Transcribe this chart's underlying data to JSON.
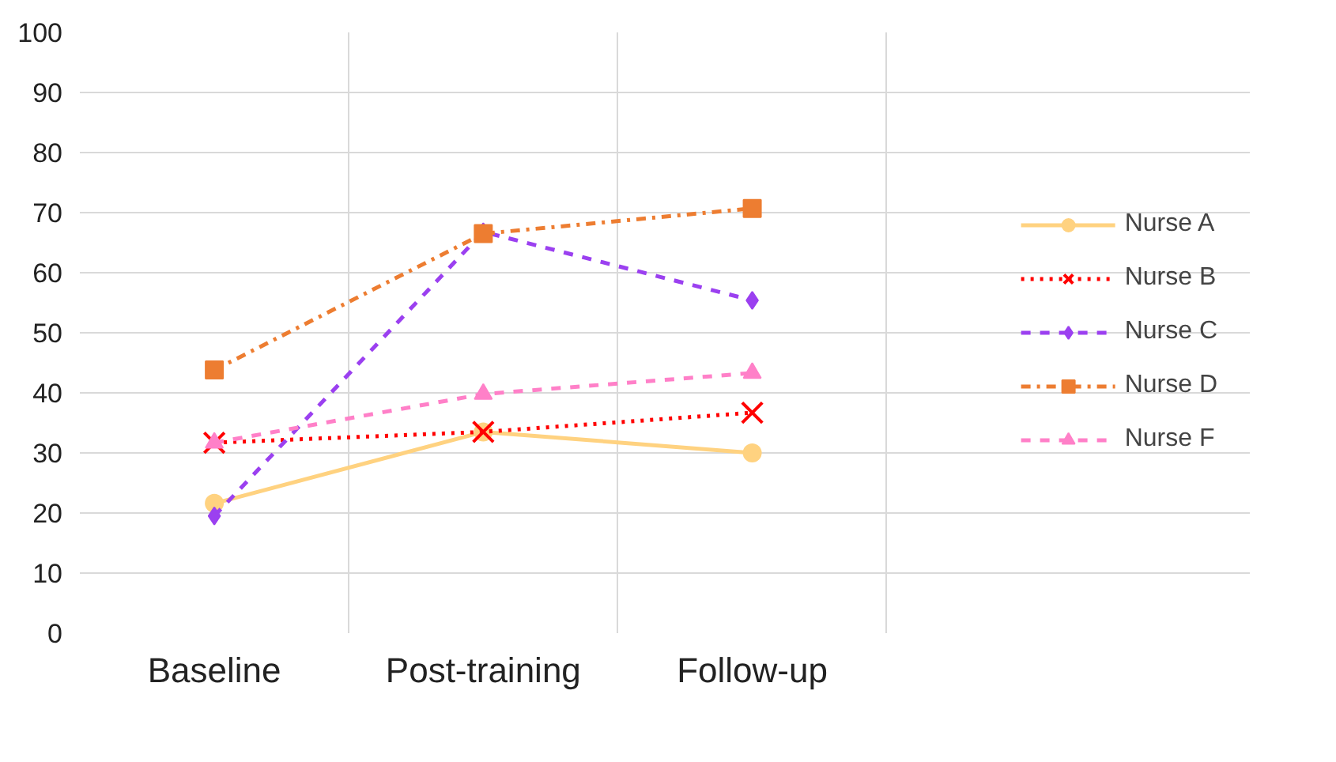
{
  "chart_data": {
    "type": "line",
    "categories": [
      "Baseline",
      "Post-training",
      "Follow-up"
    ],
    "ylim": [
      0,
      100
    ],
    "yticks": [
      0,
      10,
      20,
      30,
      40,
      50,
      60,
      70,
      80,
      90,
      100
    ],
    "grid": true,
    "legend": "right",
    "series": [
      {
        "name": "Nurse A",
        "color": "#ffd280",
        "marker": "circle",
        "line_style": "solid",
        "values": [
          21.6,
          33.5,
          30
        ]
      },
      {
        "name": "Nurse B",
        "color": "#ff0000",
        "marker": "cross",
        "line_style": "dotted",
        "values": [
          31.7,
          33.5,
          36.7
        ]
      },
      {
        "name": "Nurse C",
        "color": "#9b40f0",
        "marker": "diamond",
        "line_style": "dashed",
        "values": [
          19.5,
          66.8,
          55.4
        ]
      },
      {
        "name": "Nurse D",
        "color": "#ed7d31",
        "marker": "square",
        "line_style": "dashdot",
        "values": [
          43.8,
          66.5,
          70.7
        ]
      },
      {
        "name": "Nurse F",
        "color": "#ff80c8",
        "marker": "triangle",
        "line_style": "dashed",
        "values": [
          31.7,
          39.8,
          43.3
        ]
      }
    ]
  }
}
